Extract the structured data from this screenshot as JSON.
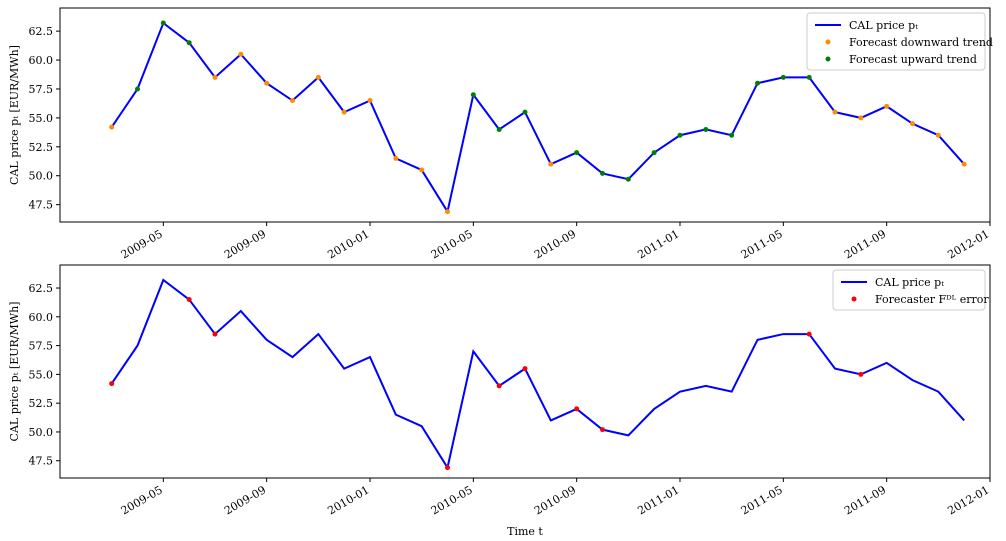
{
  "chart_data": [
    {
      "type": "line",
      "ylabel": "CAL price pₜ [EUR/MWh]",
      "x": [
        "2009-03",
        "2009-04",
        "2009-05",
        "2009-06",
        "2009-07",
        "2009-08",
        "2009-09",
        "2009-10",
        "2009-11",
        "2009-12",
        "2010-01",
        "2010-02",
        "2010-03",
        "2010-04",
        "2010-05",
        "2010-06",
        "2010-07",
        "2010-08",
        "2010-09",
        "2010-10",
        "2010-11",
        "2010-12",
        "2011-01",
        "2011-02",
        "2011-03",
        "2011-04",
        "2011-05",
        "2011-06",
        "2011-07",
        "2011-08",
        "2011-09",
        "2011-10",
        "2011-11",
        "2011-12"
      ],
      "series": [
        {
          "name": "CAL price pₜ",
          "style": "line",
          "color": "#0000ff",
          "values": [
            54.2,
            57.5,
            63.2,
            61.5,
            58.5,
            60.5,
            58.0,
            56.5,
            58.5,
            55.5,
            56.5,
            51.5,
            50.5,
            46.9,
            57.0,
            54.0,
            55.5,
            51.0,
            52.0,
            50.2,
            49.7,
            52.0,
            53.5,
            54.0,
            53.5,
            58.0,
            58.5,
            58.5,
            55.5,
            55.0,
            56.0,
            54.5,
            53.5,
            51.0
          ]
        },
        {
          "name": "Forecast downward trend",
          "style": "markers",
          "color": "#ff8c00",
          "values": [
            54.2,
            null,
            null,
            null,
            58.5,
            60.5,
            58.0,
            56.5,
            58.5,
            55.5,
            56.5,
            51.5,
            50.5,
            46.9,
            null,
            null,
            null,
            51.0,
            null,
            null,
            null,
            null,
            null,
            null,
            null,
            null,
            null,
            null,
            55.5,
            55.0,
            56.0,
            54.5,
            53.5,
            51.0
          ]
        },
        {
          "name": "Forecast upward trend",
          "style": "markers",
          "color": "#008000",
          "values": [
            null,
            57.5,
            63.2,
            61.5,
            null,
            null,
            null,
            null,
            null,
            null,
            null,
            null,
            null,
            null,
            57.0,
            54.0,
            55.5,
            null,
            52.0,
            50.2,
            49.7,
            52.0,
            53.5,
            54.0,
            53.5,
            58.0,
            58.5,
            58.5,
            null,
            null,
            null,
            null,
            null,
            null
          ]
        }
      ],
      "xlim": [
        "2009-01",
        "2012-01"
      ],
      "xticks": [
        "2009-05",
        "2009-09",
        "2010-01",
        "2010-05",
        "2010-09",
        "2011-01",
        "2011-05",
        "2011-09",
        "2012-01"
      ],
      "ylim": [
        46.0,
        64.5
      ],
      "yticks": [
        47.5,
        {
          "value": 50,
          "label": "50.0"
        },
        52.5,
        {
          "value": 55,
          "label": "55.0"
        },
        57.5,
        {
          "value": 60,
          "label": "60.0"
        },
        62.5
      ],
      "legend": "upper right"
    },
    {
      "type": "line",
      "ylabel": "CAL price pₜ [EUR/MWh]",
      "xlabel": "Time t",
      "x": [
        "2009-03",
        "2009-04",
        "2009-05",
        "2009-06",
        "2009-07",
        "2009-08",
        "2009-09",
        "2009-10",
        "2009-11",
        "2009-12",
        "2010-01",
        "2010-02",
        "2010-03",
        "2010-04",
        "2010-05",
        "2010-06",
        "2010-07",
        "2010-08",
        "2010-09",
        "2010-10",
        "2010-11",
        "2010-12",
        "2011-01",
        "2011-02",
        "2011-03",
        "2011-04",
        "2011-05",
        "2011-06",
        "2011-07",
        "2011-08",
        "2011-09",
        "2011-10",
        "2011-11",
        "2011-12"
      ],
      "series": [
        {
          "name": "CAL price pₜ",
          "style": "line",
          "color": "#0000ff",
          "values": [
            54.2,
            57.5,
            63.2,
            61.5,
            58.5,
            60.5,
            58.0,
            56.5,
            58.5,
            55.5,
            56.5,
            51.5,
            50.5,
            46.9,
            57.0,
            54.0,
            55.5,
            51.0,
            52.0,
            50.2,
            49.7,
            52.0,
            53.5,
            54.0,
            53.5,
            58.0,
            58.5,
            58.5,
            55.5,
            55.0,
            56.0,
            54.5,
            53.5,
            51.0
          ]
        },
        {
          "name": "Forecaster Fᴰᴸ error",
          "style": "markers",
          "color": "#ff0000",
          "values": [
            54.2,
            null,
            null,
            61.5,
            58.5,
            null,
            null,
            null,
            null,
            null,
            null,
            null,
            null,
            46.9,
            null,
            54.0,
            55.5,
            null,
            52.0,
            50.2,
            null,
            null,
            null,
            null,
            null,
            null,
            null,
            58.5,
            null,
            55.0,
            null,
            null,
            null,
            null
          ]
        }
      ],
      "xlim": [
        "2009-01",
        "2012-01"
      ],
      "xticks": [
        "2009-05",
        "2009-09",
        "2010-01",
        "2010-05",
        "2010-09",
        "2011-01",
        "2011-05",
        "2011-09",
        "2012-01"
      ],
      "ylim": [
        46.0,
        64.5
      ],
      "yticks": [
        47.5,
        {
          "value": 50,
          "label": "50.0"
        },
        52.5,
        {
          "value": 55,
          "label": "55.0"
        },
        57.5,
        {
          "value": 60,
          "label": "60.0"
        },
        62.5
      ],
      "legend": "upper right"
    }
  ]
}
